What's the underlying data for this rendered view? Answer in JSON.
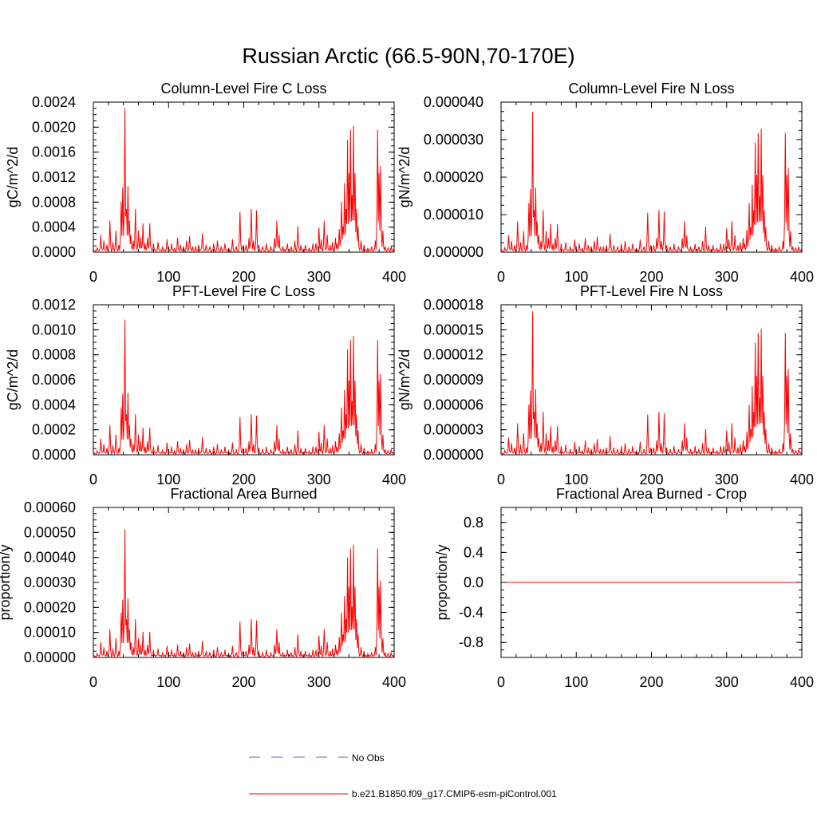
{
  "figure_title": "Russian Arctic (66.5-90N,70-170E)",
  "colors": {
    "model": "#ff0000",
    "obs": "#5b5bc8",
    "axes": "#000000"
  },
  "legend": {
    "obs_label": "No Obs",
    "model_label": "b.e21.B1850.f09_g17.CMIP6-esm-piControl.001"
  },
  "chart_data": [
    {
      "type": "line",
      "title": "Column-Level Fire C Loss",
      "ylabel": "gC/m^2/d",
      "xlim": [
        0,
        400
      ],
      "ylim": [
        0,
        0.0024
      ],
      "xticks": [
        0,
        100,
        200,
        300,
        400
      ],
      "xtick_labels": [
        "0",
        "100",
        "200",
        "300",
        "400"
      ],
      "yticks": [
        0,
        0.0004,
        0.0008,
        0.0012,
        0.0016,
        0.002,
        0.0024
      ],
      "ytick_labels": [
        "0.0000",
        "0.0004",
        "0.0008",
        "0.0012",
        "0.0016",
        "0.0020",
        "0.0024"
      ],
      "series": [
        {
          "name": "b.e21.B1850.f09_g17.CMIP6-esm-piControl.001",
          "scale": 0.0023
        }
      ]
    },
    {
      "type": "line",
      "title": "Column-Level Fire N Loss",
      "ylabel": "gN/m^2/d",
      "xlim": [
        0,
        400
      ],
      "ylim": [
        0,
        4e-05
      ],
      "xticks": [
        0,
        100,
        200,
        300,
        400
      ],
      "xtick_labels": [
        "0",
        "100",
        "200",
        "300",
        "400"
      ],
      "yticks": [
        0,
        1e-05,
        2e-05,
        3e-05,
        4e-05
      ],
      "ytick_labels": [
        "0.000000",
        "0.000010",
        "0.000020",
        "0.000030",
        "0.000040"
      ],
      "series": [
        {
          "name": "b.e21.B1850.f09_g17.CMIP6-esm-piControl.001",
          "scale": 3.74e-05
        }
      ]
    },
    {
      "type": "line",
      "title": "PFT-Level Fire C Loss",
      "ylabel": "gC/m^2/d",
      "xlim": [
        0,
        400
      ],
      "ylim": [
        0,
        0.0012
      ],
      "xticks": [
        0,
        100,
        200,
        300,
        400
      ],
      "xtick_labels": [
        "0",
        "100",
        "200",
        "300",
        "400"
      ],
      "yticks": [
        0,
        0.0002,
        0.0004,
        0.0006,
        0.0008,
        0.001,
        0.0012
      ],
      "ytick_labels": [
        "0.0000",
        "0.0002",
        "0.0004",
        "0.0006",
        "0.0008",
        "0.0010",
        "0.0012"
      ],
      "series": [
        {
          "name": "b.e21.B1850.f09_g17.CMIP6-esm-piControl.001",
          "scale": 0.00108
        }
      ]
    },
    {
      "type": "line",
      "title": "PFT-Level Fire N Loss",
      "ylabel": "gN/m^2/d",
      "xlim": [
        0,
        400
      ],
      "ylim": [
        0,
        1.8e-05
      ],
      "xticks": [
        0,
        100,
        200,
        300,
        400
      ],
      "xtick_labels": [
        "0",
        "100",
        "200",
        "300",
        "400"
      ],
      "yticks": [
        0,
        3e-06,
        6e-06,
        9e-06,
        1.2e-05,
        1.5e-05,
        1.8e-05
      ],
      "ytick_labels": [
        "0.000000",
        "0.000003",
        "0.000006",
        "0.000009",
        "0.000012",
        "0.000015",
        "0.000018"
      ],
      "series": [
        {
          "name": "b.e21.B1850.f09_g17.CMIP6-esm-piControl.001",
          "scale": 1.72e-05
        }
      ]
    },
    {
      "type": "line",
      "title": "Fractional Area Burned",
      "ylabel": "proportion/y",
      "xlim": [
        0,
        400
      ],
      "ylim": [
        0,
        0.0006
      ],
      "xticks": [
        0,
        100,
        200,
        300,
        400
      ],
      "xtick_labels": [
        "0",
        "100",
        "200",
        "300",
        "400"
      ],
      "yticks": [
        0,
        0.0001,
        0.0002,
        0.0003,
        0.0004,
        0.0005,
        0.0006
      ],
      "ytick_labels": [
        "0.00000",
        "0.00010",
        "0.00020",
        "0.00030",
        "0.00040",
        "0.00050",
        "0.00060"
      ],
      "series": [
        {
          "name": "b.e21.B1850.f09_g17.CMIP6-esm-piControl.001",
          "scale": 0.000512
        }
      ]
    },
    {
      "type": "line",
      "title": "Fractional Area Burned - Crop",
      "ylabel": "proportion/y",
      "xlim": [
        0,
        400
      ],
      "ylim": [
        -1.0,
        1.0
      ],
      "xticks": [
        0,
        100,
        200,
        300,
        400
      ],
      "xtick_labels": [
        "0",
        "100",
        "200",
        "300",
        "400"
      ],
      "yticks": [
        -0.8,
        -0.4,
        0.0,
        0.4,
        0.8
      ],
      "ytick_labels": [
        "-0.8",
        "-0.4",
        "0.0",
        "0.4",
        "0.8"
      ],
      "series": [
        {
          "name": "b.e21.B1850.f09_g17.CMIP6-esm-piControl.001",
          "constant": 0.0
        }
      ]
    }
  ],
  "shape": {
    "note": "normalized annual fire series (x = year 1..400, y = fraction of peak)",
    "peaks": [
      [
        5,
        0.03
      ],
      [
        10,
        0.12
      ],
      [
        14,
        0.08
      ],
      [
        18,
        0.05
      ],
      [
        22,
        0.22
      ],
      [
        26,
        0.07
      ],
      [
        30,
        0.15
      ],
      [
        34,
        0.05
      ],
      [
        37,
        0.35
      ],
      [
        39,
        0.45
      ],
      [
        42,
        1.0
      ],
      [
        44,
        0.3
      ],
      [
        46,
        0.46
      ],
      [
        48,
        0.22
      ],
      [
        50,
        0.12
      ],
      [
        53,
        0.08
      ],
      [
        56,
        0.3
      ],
      [
        60,
        0.15
      ],
      [
        63,
        0.1
      ],
      [
        66,
        0.2
      ],
      [
        69,
        0.06
      ],
      [
        72,
        0.1
      ],
      [
        75,
        0.2
      ],
      [
        80,
        0.06
      ],
      [
        86,
        0.07
      ],
      [
        92,
        0.04
      ],
      [
        98,
        0.09
      ],
      [
        104,
        0.06
      ],
      [
        108,
        0.03
      ],
      [
        112,
        0.1
      ],
      [
        116,
        0.05
      ],
      [
        120,
        0.04
      ],
      [
        124,
        0.08
      ],
      [
        128,
        0.11
      ],
      [
        132,
        0.04
      ],
      [
        136,
        0.04
      ],
      [
        140,
        0.05
      ],
      [
        145,
        0.13
      ],
      [
        150,
        0.05
      ],
      [
        155,
        0.04
      ],
      [
        160,
        0.06
      ],
      [
        165,
        0.08
      ],
      [
        170,
        0.04
      ],
      [
        175,
        0.06
      ],
      [
        180,
        0.03
      ],
      [
        185,
        0.09
      ],
      [
        190,
        0.04
      ],
      [
        195,
        0.28
      ],
      [
        199,
        0.05
      ],
      [
        203,
        0.05
      ],
      [
        207,
        0.1
      ],
      [
        210,
        0.3
      ],
      [
        213,
        0.08
      ],
      [
        217,
        0.29
      ],
      [
        220,
        0.05
      ],
      [
        225,
        0.04
      ],
      [
        230,
        0.06
      ],
      [
        236,
        0.04
      ],
      [
        241,
        0.1
      ],
      [
        244,
        0.22
      ],
      [
        247,
        0.12
      ],
      [
        252,
        0.04
      ],
      [
        258,
        0.06
      ],
      [
        263,
        0.04
      ],
      [
        268,
        0.08
      ],
      [
        272,
        0.18
      ],
      [
        276,
        0.05
      ],
      [
        282,
        0.05
      ],
      [
        287,
        0.03
      ],
      [
        292,
        0.06
      ],
      [
        296,
        0.06
      ],
      [
        300,
        0.17
      ],
      [
        303,
        0.09
      ],
      [
        307,
        0.22
      ],
      [
        311,
        0.12
      ],
      [
        315,
        0.05
      ],
      [
        318,
        0.07
      ],
      [
        322,
        0.1
      ],
      [
        324,
        0.06
      ],
      [
        327,
        0.16
      ],
      [
        330,
        0.35
      ],
      [
        332,
        0.18
      ],
      [
        334,
        0.48
      ],
      [
        336,
        0.3
      ],
      [
        338,
        0.78
      ],
      [
        340,
        0.55
      ],
      [
        342,
        0.85
      ],
      [
        344,
        0.4
      ],
      [
        346,
        0.88
      ],
      [
        348,
        0.55
      ],
      [
        350,
        0.3
      ],
      [
        352,
        0.18
      ],
      [
        356,
        0.08
      ],
      [
        360,
        0.05
      ],
      [
        365,
        0.03
      ],
      [
        370,
        0.04
      ],
      [
        375,
        0.08
      ],
      [
        378,
        0.85
      ],
      [
        380,
        0.55
      ],
      [
        382,
        0.6
      ],
      [
        385,
        0.15
      ],
      [
        388,
        0.04
      ],
      [
        392,
        0.03
      ],
      [
        396,
        0.04
      ],
      [
        400,
        0.02
      ]
    ]
  }
}
